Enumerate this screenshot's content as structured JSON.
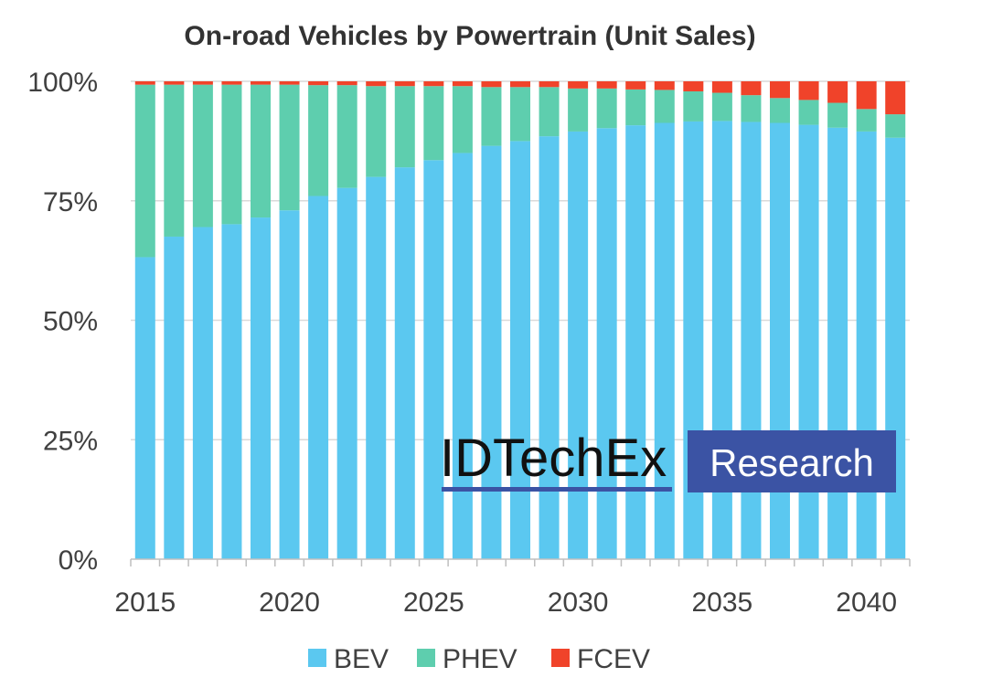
{
  "chart_data": {
    "type": "bar",
    "stacked": true,
    "title": "On-road Vehicles by Powertrain (Unit Sales)",
    "xlabel": "",
    "ylabel": "",
    "ylim": [
      0,
      100
    ],
    "yticks": [
      "0%",
      "25%",
      "50%",
      "75%",
      "100%"
    ],
    "ytick_values": [
      0,
      25,
      50,
      75,
      100
    ],
    "xtick_labels": [
      "2015",
      "2020",
      "2025",
      "2030",
      "2035",
      "2040"
    ],
    "categories": [
      "2015",
      "2016",
      "2017",
      "2018",
      "2019",
      "2020",
      "2021",
      "2022",
      "2023",
      "2024",
      "2025",
      "2026",
      "2027",
      "2028",
      "2029",
      "2030",
      "2031",
      "2032",
      "2033",
      "2034",
      "2035",
      "2036",
      "2037",
      "2038",
      "2039",
      "2040",
      "2041"
    ],
    "series": [
      {
        "name": "BEV",
        "color": "#5BC8F0",
        "values": [
          63.2,
          67.5,
          69.5,
          70.1,
          71.5,
          73.0,
          76.0,
          77.7,
          80.0,
          82.0,
          83.5,
          85.0,
          86.5,
          87.5,
          88.5,
          89.5,
          90.2,
          90.8,
          91.3,
          91.6,
          91.7,
          91.5,
          91.3,
          90.9,
          90.3,
          89.5,
          88.2
        ]
      },
      {
        "name": "PHEV",
        "color": "#5ECEAE",
        "values": [
          36.1,
          31.8,
          29.8,
          29.2,
          27.8,
          26.3,
          23.2,
          21.5,
          19.0,
          17.0,
          15.5,
          14.0,
          12.3,
          11.3,
          10.3,
          9.0,
          8.3,
          7.5,
          6.9,
          6.3,
          5.9,
          5.6,
          5.2,
          5.2,
          5.2,
          4.7,
          4.9
        ]
      },
      {
        "name": "FCEV",
        "color": "#F0432A",
        "values": [
          0.7,
          0.7,
          0.7,
          0.7,
          0.7,
          0.7,
          0.8,
          0.8,
          1.0,
          1.0,
          1.0,
          1.0,
          1.2,
          1.2,
          1.2,
          1.5,
          1.5,
          1.7,
          1.8,
          2.1,
          2.4,
          2.9,
          3.5,
          3.9,
          4.5,
          5.8,
          6.9
        ]
      }
    ],
    "legend_position": "bottom",
    "grid": true
  },
  "logo": {
    "brand": "IDTechEx",
    "suffix": "Research",
    "brand_color": "#111111",
    "box_color": "#3B53A4",
    "underline_color": "#3B53A4"
  },
  "colors": {
    "axis": "#BFBFBF",
    "grid": "#D9D9D9",
    "text": "#404040"
  }
}
